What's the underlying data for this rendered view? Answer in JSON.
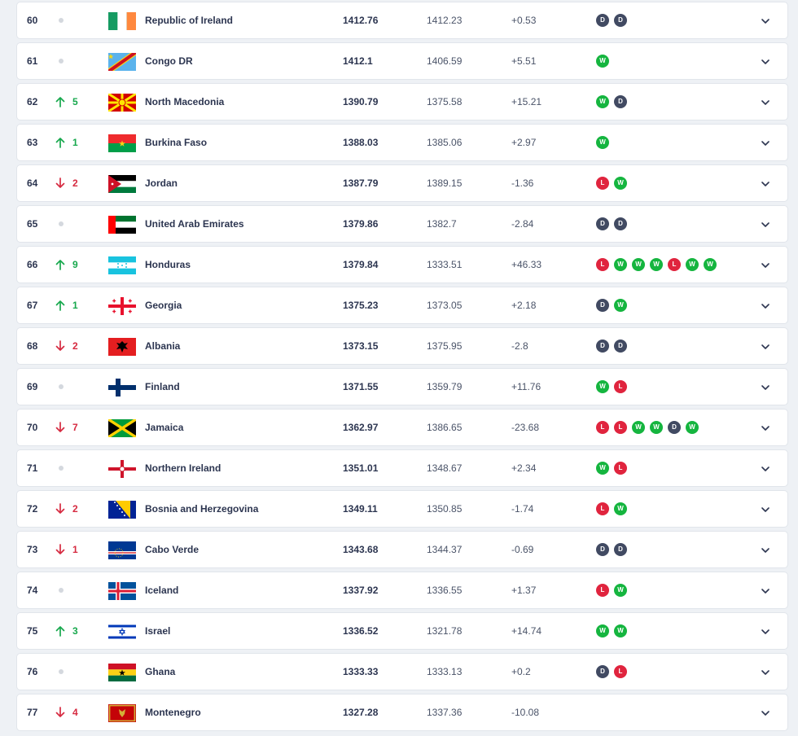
{
  "rows": [
    {
      "rank": "60",
      "move": "none",
      "move_count": "",
      "team": "Republic of Ireland",
      "flag": "flag-ireland",
      "points": "1412.76",
      "previous": "1412.23",
      "change": "+0.53",
      "form": [
        "D",
        "D"
      ]
    },
    {
      "rank": "61",
      "move": "none",
      "move_count": "",
      "team": "Congo DR",
      "flag": "flag-congo-dr",
      "points": "1412.1",
      "previous": "1406.59",
      "change": "+5.51",
      "form": [
        "W"
      ]
    },
    {
      "rank": "62",
      "move": "up",
      "move_count": "5",
      "team": "North Macedonia",
      "flag": "flag-north-macedonia",
      "points": "1390.79",
      "previous": "1375.58",
      "change": "+15.21",
      "form": [
        "W",
        "D"
      ]
    },
    {
      "rank": "63",
      "move": "up",
      "move_count": "1",
      "team": "Burkina Faso",
      "flag": "flag-burkina-faso",
      "points": "1388.03",
      "previous": "1385.06",
      "change": "+2.97",
      "form": [
        "W"
      ]
    },
    {
      "rank": "64",
      "move": "down",
      "move_count": "2",
      "team": "Jordan",
      "flag": "flag-jordan",
      "points": "1387.79",
      "previous": "1389.15",
      "change": "-1.36",
      "form": [
        "L",
        "W"
      ]
    },
    {
      "rank": "65",
      "move": "none",
      "move_count": "",
      "team": "United Arab Emirates",
      "flag": "flag-uae",
      "points": "1379.86",
      "previous": "1382.7",
      "change": "-2.84",
      "form": [
        "D",
        "D"
      ]
    },
    {
      "rank": "66",
      "move": "up",
      "move_count": "9",
      "team": "Honduras",
      "flag": "flag-honduras",
      "points": "1379.84",
      "previous": "1333.51",
      "change": "+46.33",
      "form": [
        "L",
        "W",
        "W",
        "W",
        "L",
        "W",
        "W"
      ]
    },
    {
      "rank": "67",
      "move": "up",
      "move_count": "1",
      "team": "Georgia",
      "flag": "flag-georgia",
      "points": "1375.23",
      "previous": "1373.05",
      "change": "+2.18",
      "form": [
        "D",
        "W"
      ]
    },
    {
      "rank": "68",
      "move": "down",
      "move_count": "2",
      "team": "Albania",
      "flag": "flag-albania",
      "points": "1373.15",
      "previous": "1375.95",
      "change": "-2.8",
      "form": [
        "D",
        "D"
      ]
    },
    {
      "rank": "69",
      "move": "none",
      "move_count": "",
      "team": "Finland",
      "flag": "flag-finland",
      "points": "1371.55",
      "previous": "1359.79",
      "change": "+11.76",
      "form": [
        "W",
        "L"
      ]
    },
    {
      "rank": "70",
      "move": "down",
      "move_count": "7",
      "team": "Jamaica",
      "flag": "flag-jamaica",
      "points": "1362.97",
      "previous": "1386.65",
      "change": "-23.68",
      "form": [
        "L",
        "L",
        "W",
        "W",
        "D",
        "W"
      ]
    },
    {
      "rank": "71",
      "move": "none",
      "move_count": "",
      "team": "Northern Ireland",
      "flag": "flag-northern-ireland",
      "points": "1351.01",
      "previous": "1348.67",
      "change": "+2.34",
      "form": [
        "W",
        "L"
      ]
    },
    {
      "rank": "72",
      "move": "down",
      "move_count": "2",
      "team": "Bosnia and Herzegovina",
      "flag": "flag-bosnia",
      "points": "1349.11",
      "previous": "1350.85",
      "change": "-1.74",
      "form": [
        "L",
        "W"
      ]
    },
    {
      "rank": "73",
      "move": "down",
      "move_count": "1",
      "team": "Cabo Verde",
      "flag": "flag-cabo-verde",
      "points": "1343.68",
      "previous": "1344.37",
      "change": "-0.69",
      "form": [
        "D",
        "D"
      ]
    },
    {
      "rank": "74",
      "move": "none",
      "move_count": "",
      "team": "Iceland",
      "flag": "flag-iceland",
      "points": "1337.92",
      "previous": "1336.55",
      "change": "+1.37",
      "form": [
        "L",
        "W"
      ]
    },
    {
      "rank": "75",
      "move": "up",
      "move_count": "3",
      "team": "Israel",
      "flag": "flag-israel",
      "points": "1336.52",
      "previous": "1321.78",
      "change": "+14.74",
      "form": [
        "W",
        "W"
      ]
    },
    {
      "rank": "76",
      "move": "none",
      "move_count": "",
      "team": "Ghana",
      "flag": "flag-ghana",
      "points": "1333.33",
      "previous": "1333.13",
      "change": "+0.2",
      "form": [
        "D",
        "L"
      ]
    },
    {
      "rank": "77",
      "move": "down",
      "move_count": "4",
      "team": "Montenegro",
      "flag": "flag-montenegro",
      "points": "1327.28",
      "previous": "1337.36",
      "change": "-10.08",
      "form": []
    }
  ],
  "colors": {
    "up": "#17a84d",
    "down": "#d62a40",
    "win": "#15b53f",
    "draw": "#414a62",
    "loss": "#e0243e",
    "text": "#2c3550",
    "background": "#eef1f5"
  },
  "icons": {
    "up": "arrow-up-icon",
    "down": "arrow-down-icon",
    "none": "no-change-dot-icon",
    "expand": "chevron-down-icon"
  }
}
